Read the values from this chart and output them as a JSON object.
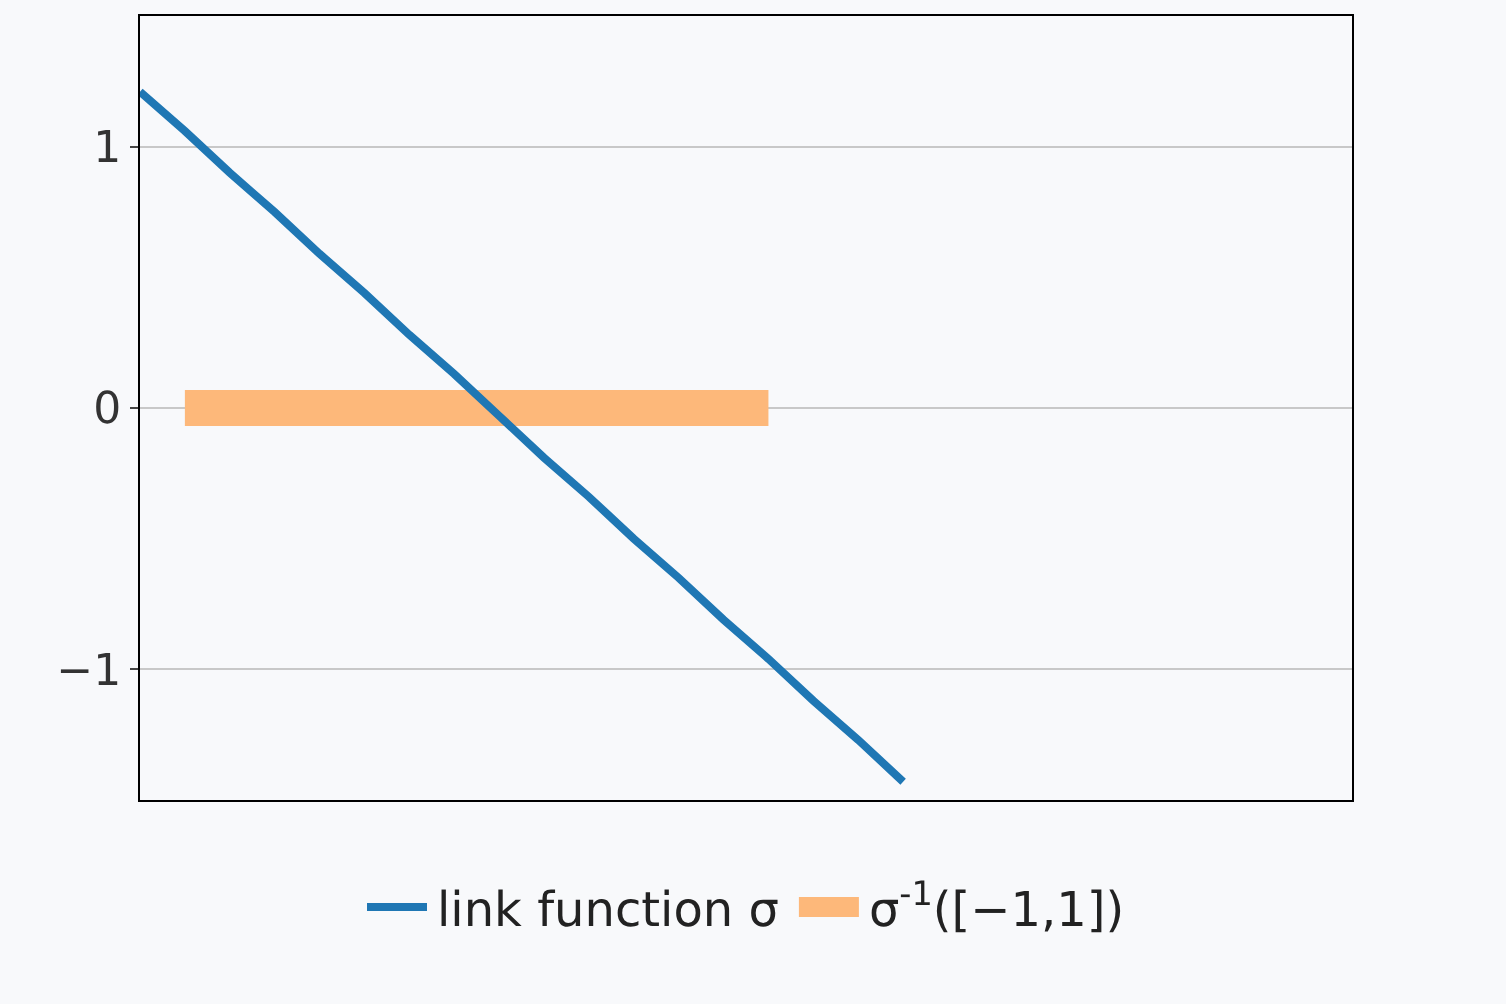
{
  "chart_data": {
    "type": "line",
    "categories": [
      null,
      null,
      null,
      null,
      null,
      null,
      null,
      null,
      null,
      null,
      null,
      null,
      null,
      null,
      null,
      null,
      null,
      null,
      null,
      null,
      null,
      null,
      null,
      null,
      null,
      null,
      null,
      null
    ],
    "series": [
      {
        "name": "link function σ",
        "color": "#1f77b4",
        "values": [
          1.21,
          1.06,
          0.9,
          0.75,
          0.59,
          0.44,
          0.28,
          0.13,
          -0.03,
          -0.19,
          -0.34,
          -0.5,
          -0.65,
          -0.81,
          -0.96,
          -1.12,
          -1.27,
          -1.43,
          null,
          null,
          null,
          null,
          null,
          null,
          null,
          null,
          null,
          null
        ]
      },
      {
        "name": "σ$^{-1}$([−1,1])",
        "color": "#fdb87a",
        "values": [
          null,
          0,
          0,
          0,
          0,
          0,
          0,
          0,
          0,
          0,
          0,
          0,
          0,
          0,
          0,
          null,
          null,
          null,
          null,
          null,
          null,
          null,
          null,
          null,
          null,
          null,
          null,
          null
        ]
      }
    ],
    "ylim": [
      -1.5,
      1.5
    ],
    "yticks": [
      {
        "value": -1,
        "label": "−1"
      },
      0,
      1
    ],
    "grid": "y",
    "legend": "bottom",
    "tick_labels": "y",
    "marker": "none",
    "line_style": "solid"
  }
}
